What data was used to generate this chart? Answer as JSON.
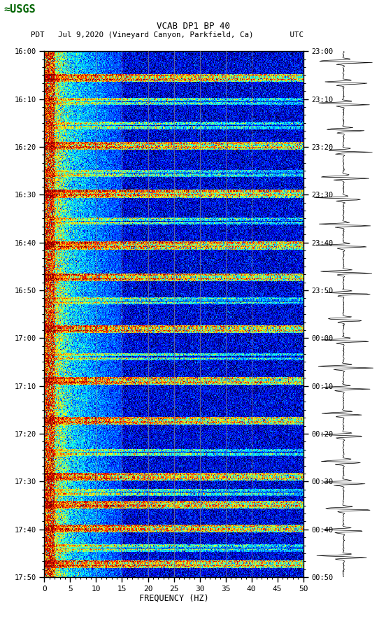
{
  "title_line1": "VCAB DP1 BP 40",
  "title_line2_pdt": "PDT   Jul 9,2020 (Vineyard Canyon, Parkfield, Ca)        UTC",
  "xlabel": "FREQUENCY (HZ)",
  "freq_min": 0,
  "freq_max": 50,
  "left_yticks_labels": [
    "16:00",
    "16:10",
    "16:20",
    "16:30",
    "16:40",
    "16:50",
    "17:00",
    "17:10",
    "17:20",
    "17:30",
    "17:40",
    "17:50"
  ],
  "right_yticks_labels": [
    "23:00",
    "23:10",
    "23:20",
    "23:30",
    "23:40",
    "23:50",
    "00:00",
    "00:10",
    "00:20",
    "00:30",
    "00:40",
    "00:50"
  ],
  "freq_ticks": [
    0,
    5,
    10,
    15,
    20,
    25,
    30,
    35,
    40,
    45,
    50
  ],
  "vert_grid_lines_freq": [
    10,
    15,
    20,
    25,
    30,
    35,
    40
  ],
  "num_time_bins": 660,
  "num_freq_bins": 400,
  "event_times_strong": [
    30,
    35,
    115,
    120,
    175,
    180,
    240,
    245,
    280,
    285,
    345,
    350,
    410,
    415,
    460,
    465,
    530,
    535,
    565,
    570,
    595,
    600,
    640,
    645
  ],
  "event_times_medium": [
    60,
    65,
    90,
    95,
    150,
    155,
    210,
    215,
    310,
    315,
    380,
    385,
    500,
    505,
    550,
    555,
    620,
    625
  ],
  "seismic_low_freq_bins": 16,
  "seismic_low_freq_bins2": 48
}
